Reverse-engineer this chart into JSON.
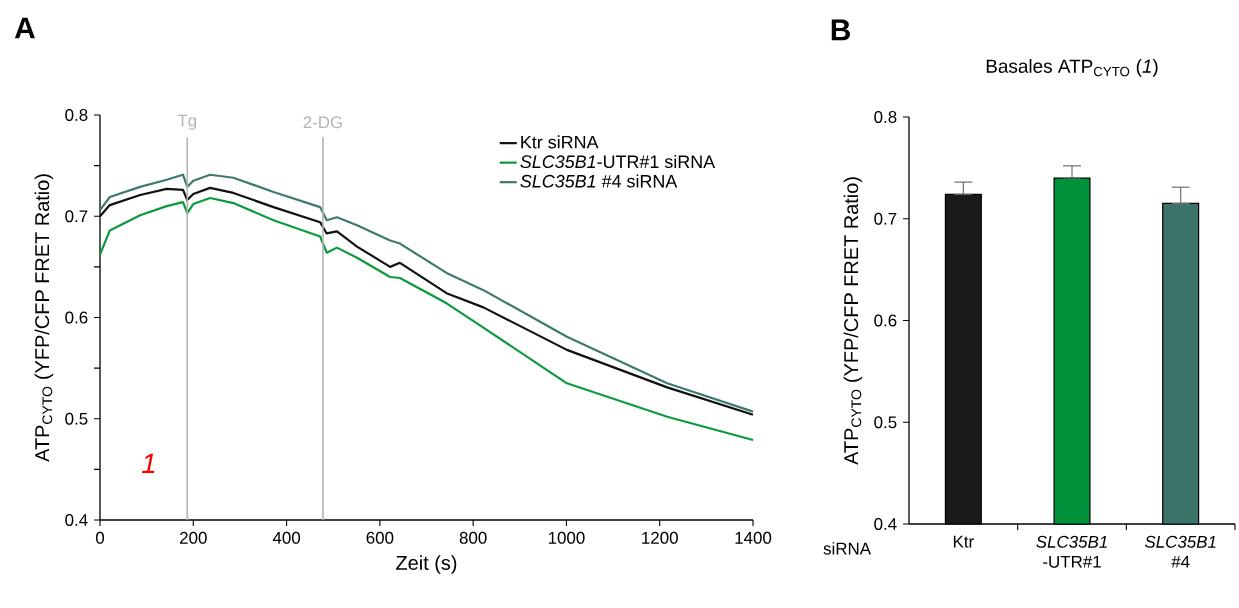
{
  "chart_data": [
    {
      "type": "line",
      "xlabel": "Zeit (s)",
      "ylabel": "ATP$_{CYTO}$ (YFP/CFP FRET Ratio)",
      "x": [
        0,
        21,
        86,
        143,
        178,
        187,
        200,
        236,
        286,
        372,
        472,
        486,
        508,
        551,
        622,
        643,
        743,
        822,
        1001,
        1216,
        1400
      ],
      "series": [
        {
          "name": "Ktr siRNA",
          "color": "#111111",
          "values": [
            0.7,
            0.711,
            0.721,
            0.727,
            0.726,
            0.716,
            0.722,
            0.728,
            0.723,
            0.709,
            0.694,
            0.683,
            0.685,
            0.67,
            0.65,
            0.654,
            0.624,
            0.61,
            0.568,
            0.531,
            0.504
          ]
        },
        {
          "name": "*SLC35B1*-UTR#1 siRNA",
          "color": "#0c9a3c",
          "values": [
            0.662,
            0.686,
            0.701,
            0.71,
            0.714,
            0.703,
            0.712,
            0.718,
            0.713,
            0.696,
            0.68,
            0.664,
            0.669,
            0.659,
            0.64,
            0.639,
            0.614,
            0.59,
            0.535,
            0.502,
            0.479
          ]
        },
        {
          "name": "*SLC35B1* #4 siRNA",
          "color": "#3e7a6e",
          "values": [
            0.706,
            0.719,
            0.729,
            0.736,
            0.741,
            0.729,
            0.735,
            0.741,
            0.738,
            0.724,
            0.709,
            0.696,
            0.699,
            0.691,
            0.676,
            0.673,
            0.644,
            0.627,
            0.581,
            0.535,
            0.507
          ]
        }
      ],
      "xlim": [
        0,
        1400
      ],
      "ylim": [
        0.4,
        0.8
      ],
      "xticks": [
        0,
        200,
        400,
        600,
        800,
        1000,
        1200,
        1400
      ],
      "yticks": [
        0.4,
        {
          "value": 0.45,
          "label": null
        },
        0.5,
        {
          "value": 0.55,
          "label": null
        },
        0.6,
        {
          "value": 0.65,
          "label": null
        },
        0.7,
        {
          "value": 0.75,
          "label": null
        },
        0.8
      ],
      "legend": "top right",
      "ref_lines": [
        {
          "axis": "x",
          "value": 187,
          "label": "Tg",
          "color": "#b3b3b3"
        },
        {
          "axis": "x",
          "value": 478,
          "label": "2-DG",
          "color": "#b3b3b3"
        }
      ],
      "annotations": [
        "A",
        "1"
      ]
    },
    {
      "type": "bar",
      "title": "Basales ATP$_{CYTO}$ (*1*)",
      "ylabel": "ATP$_{CYTO}$ (YFP/CFP FRET Ratio)",
      "categories": [
        "Ktr",
        "*SLC35B1* -UTR#1",
        "*SLC35B1* #4"
      ],
      "values": [
        0.724,
        0.74,
        0.715
      ],
      "colors": [
        "#1a1a1a",
        "#00913a",
        "#3b7468"
      ],
      "errors": [
        [
          0.724,
          0.736
        ],
        [
          0.74,
          0.752
        ],
        [
          0.715,
          0.731
        ]
      ],
      "ylim": [
        0.4,
        0.8
      ],
      "yticks": [
        0.4,
        0.5,
        0.6,
        0.7,
        0.8
      ],
      "annotations": [
        "B",
        "siRNA"
      ]
    }
  ]
}
